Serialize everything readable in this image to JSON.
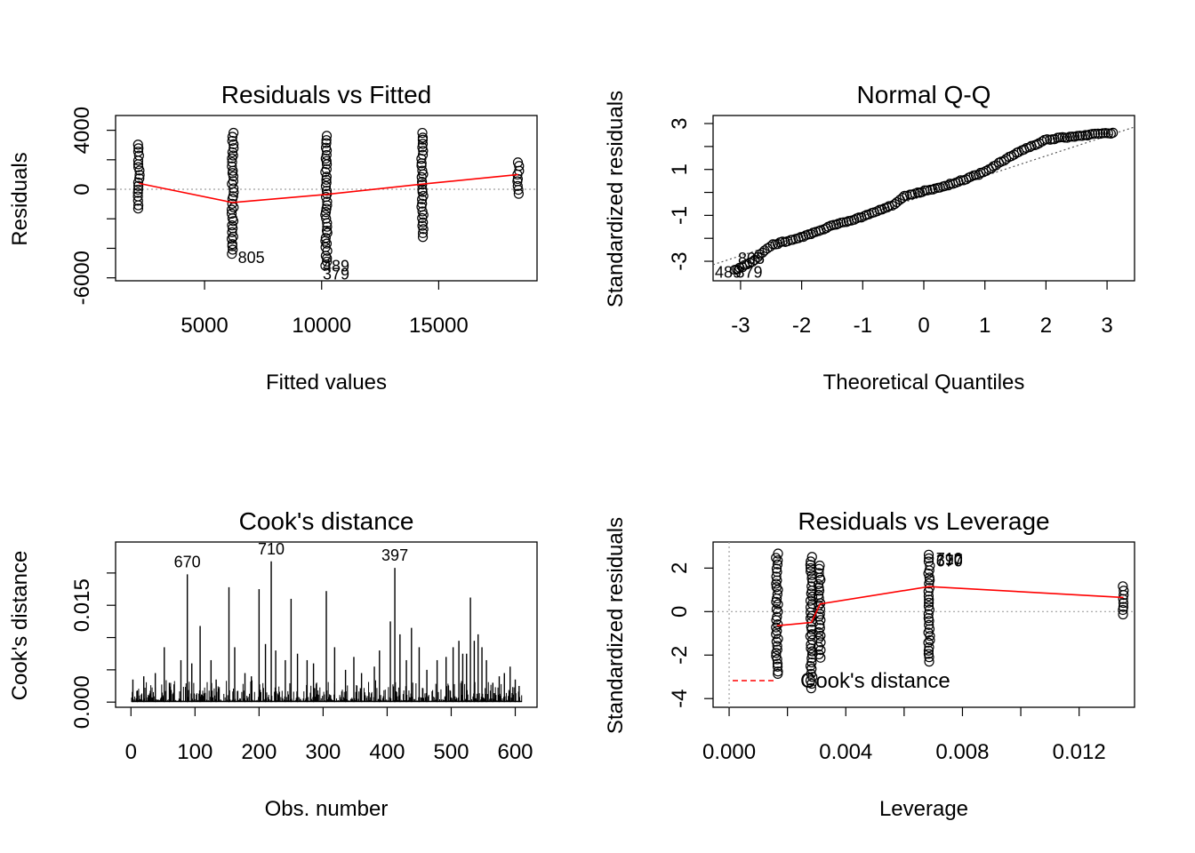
{
  "colors": {
    "fit": "#ff0000",
    "reference": "#a0a0a0",
    "points": "#000000",
    "cook": "#ff0000"
  },
  "chart_data": [
    {
      "id": "residuals-vs-fitted",
      "type": "scatter",
      "title": "Residuals vs Fitted",
      "xlabel": "Fitted values",
      "ylabel": "Residuals",
      "xlim": [
        1200,
        19200
      ],
      "ylim": [
        -6200,
        5000
      ],
      "xticks": [
        5000,
        10000,
        15000
      ],
      "xtick_labels": [
        "5000",
        "10000",
        "15000"
      ],
      "yticks": [
        -6000,
        -4000,
        -2000,
        0,
        2000,
        4000
      ],
      "ytick_labels": [
        "-6000",
        "",
        "",
        "0",
        "",
        "4000"
      ],
      "reference_h": 0,
      "point_groups": [
        {
          "x": 2200,
          "min": -1300,
          "max": 3000
        },
        {
          "x": 6200,
          "min": -4400,
          "max": 3800
        },
        {
          "x": 10200,
          "min": -5200,
          "max": 3600
        },
        {
          "x": 14300,
          "min": -3200,
          "max": 3800
        },
        {
          "x": 18400,
          "min": -300,
          "max": 1800
        }
      ],
      "smooth": {
        "x": [
          2200,
          6200,
          10200,
          14300,
          18400
        ],
        "y": [
          400,
          -900,
          -350,
          350,
          1000
        ]
      },
      "point_labels": [
        {
          "text": "805",
          "x": 6200,
          "y": -4400
        },
        {
          "text": "489",
          "x": 10200,
          "y": -5200
        },
        {
          "text": "379",
          "x": 10200,
          "y": -5400
        }
      ]
    },
    {
      "id": "normal-qq",
      "type": "scatter",
      "title": "Normal Q-Q",
      "xlabel": "Theoretical Quantiles",
      "ylabel": "Standardized residuals",
      "xlim": [
        -3.45,
        3.45
      ],
      "ylim": [
        -3.85,
        3.35
      ],
      "xticks": [
        -3,
        -2,
        -1,
        0,
        1,
        2,
        3
      ],
      "xtick_labels": [
        "-3",
        "-2",
        "-1",
        "0",
        "1",
        "2",
        "3"
      ],
      "yticks": [
        -3,
        -2,
        -1,
        0,
        1,
        2,
        3
      ],
      "ytick_labels": [
        "-3",
        "",
        "-1",
        "",
        "1",
        "",
        "3"
      ],
      "reference_line": {
        "x": [
          -3.45,
          3.45
        ],
        "y": [
          -3.15,
          2.85
        ]
      },
      "curve": {
        "x": [
          -3.1,
          -2.8,
          -2.5,
          -2.0,
          -1.5,
          -1.0,
          -0.5,
          -0.3,
          0,
          0.5,
          1.0,
          1.5,
          2.0,
          2.5,
          3.1
        ],
        "y": [
          -3.4,
          -3.0,
          -2.3,
          -1.95,
          -1.45,
          -1.05,
          -0.55,
          -0.15,
          0.05,
          0.4,
          0.9,
          1.7,
          2.3,
          2.45,
          2.6
        ]
      },
      "point_labels": [
        {
          "text": "805",
          "x": -3.1,
          "y": -2.95
        },
        {
          "text": "489",
          "x": -3.3,
          "y": -3.55
        },
        {
          "text": "379",
          "x": -3.05,
          "y": -3.55
        }
      ]
    },
    {
      "id": "cooks-distance",
      "type": "bar",
      "title": "Cook's distance",
      "xlabel": "Obs. number",
      "ylabel": "Cook's distance",
      "xlim": [
        -24,
        634
      ],
      "ylim": [
        -0.0008,
        0.0248
      ],
      "xticks": [
        0,
        100,
        200,
        300,
        400,
        500,
        600
      ],
      "xtick_labels": [
        "0",
        "100",
        "200",
        "300",
        "400",
        "500",
        "600"
      ],
      "yticks": [
        0.0,
        0.005,
        0.01,
        0.015,
        0.02
      ],
      "ytick_labels": [
        "0.000",
        "",
        "",
        "0.015",
        ""
      ],
      "n_obs": 610,
      "spikes": [
        {
          "x": 3,
          "y": 0.0035
        },
        {
          "x": 10,
          "y": 0.0018
        },
        {
          "x": 20,
          "y": 0.004
        },
        {
          "x": 38,
          "y": 0.0045
        },
        {
          "x": 52,
          "y": 0.0085
        },
        {
          "x": 60,
          "y": 0.003
        },
        {
          "x": 78,
          "y": 0.0065
        },
        {
          "x": 88,
          "y": 0.0198
        },
        {
          "x": 95,
          "y": 0.006
        },
        {
          "x": 108,
          "y": 0.0118
        },
        {
          "x": 125,
          "y": 0.0065
        },
        {
          "x": 133,
          "y": 0.0035
        },
        {
          "x": 153,
          "y": 0.0178
        },
        {
          "x": 162,
          "y": 0.0085
        },
        {
          "x": 178,
          "y": 0.0045
        },
        {
          "x": 188,
          "y": 0.004
        },
        {
          "x": 200,
          "y": 0.0175
        },
        {
          "x": 210,
          "y": 0.009
        },
        {
          "x": 219,
          "y": 0.0218
        },
        {
          "x": 226,
          "y": 0.008
        },
        {
          "x": 241,
          "y": 0.0065
        },
        {
          "x": 250,
          "y": 0.016
        },
        {
          "x": 260,
          "y": 0.0075
        },
        {
          "x": 275,
          "y": 0.0065
        },
        {
          "x": 285,
          "y": 0.006
        },
        {
          "x": 305,
          "y": 0.0172
        },
        {
          "x": 318,
          "y": 0.0085
        },
        {
          "x": 335,
          "y": 0.005
        },
        {
          "x": 348,
          "y": 0.007
        },
        {
          "x": 360,
          "y": 0.0045
        },
        {
          "x": 380,
          "y": 0.0055
        },
        {
          "x": 388,
          "y": 0.008
        },
        {
          "x": 405,
          "y": 0.0125
        },
        {
          "x": 412,
          "y": 0.0208
        },
        {
          "x": 420,
          "y": 0.0105
        },
        {
          "x": 430,
          "y": 0.0065
        },
        {
          "x": 438,
          "y": 0.0115
        },
        {
          "x": 450,
          "y": 0.0085
        },
        {
          "x": 462,
          "y": 0.005
        },
        {
          "x": 478,
          "y": 0.0065
        },
        {
          "x": 492,
          "y": 0.007
        },
        {
          "x": 503,
          "y": 0.0085
        },
        {
          "x": 512,
          "y": 0.0095
        },
        {
          "x": 518,
          "y": 0.0075
        },
        {
          "x": 524,
          "y": 0.0075
        },
        {
          "x": 530,
          "y": 0.0162
        },
        {
          "x": 536,
          "y": 0.0095
        },
        {
          "x": 542,
          "y": 0.0105
        },
        {
          "x": 548,
          "y": 0.0085
        },
        {
          "x": 555,
          "y": 0.0065
        },
        {
          "x": 565,
          "y": 0.003
        },
        {
          "x": 575,
          "y": 0.004
        },
        {
          "x": 583,
          "y": 0.0045
        },
        {
          "x": 592,
          "y": 0.0055
        },
        {
          "x": 600,
          "y": 0.0035
        },
        {
          "x": 606,
          "y": 0.0025
        }
      ],
      "point_labels": [
        {
          "text": "670",
          "x": 88,
          "y": 0.0198
        },
        {
          "text": "710",
          "x": 219,
          "y": 0.0218
        },
        {
          "text": "397",
          "x": 412,
          "y": 0.0208
        }
      ]
    },
    {
      "id": "residuals-vs-leverage",
      "type": "scatter",
      "title": "Residuals vs Leverage",
      "xlabel": "Leverage",
      "ylabel": "Standardized residuals",
      "xlim": [
        -0.00055,
        0.0139
      ],
      "ylim": [
        -4.4,
        3.2
      ],
      "xticks": [
        0.0,
        0.002,
        0.004,
        0.006,
        0.008,
        0.01,
        0.012
      ],
      "xtick_labels": [
        "0.000",
        "",
        "0.004",
        "",
        "0.008",
        "",
        "0.012"
      ],
      "yticks": [
        -4,
        -2,
        0,
        2
      ],
      "ytick_labels": [
        "-4",
        "-2",
        "0",
        "2"
      ],
      "reference_h": 0,
      "reference_v": 0,
      "point_groups": [
        {
          "x": 0.00164,
          "min": -2.9,
          "max": 2.65
        },
        {
          "x": 0.00282,
          "min": -3.5,
          "max": 2.5
        },
        {
          "x": 0.0031,
          "min": -2.1,
          "max": 2.1
        },
        {
          "x": 0.00685,
          "min": -2.3,
          "max": 2.6
        },
        {
          "x": 0.01352,
          "min": -0.15,
          "max": 1.15
        }
      ],
      "smooth": {
        "x": [
          0.00164,
          0.00282,
          0.00312,
          0.00685,
          0.01352
        ],
        "y": [
          -0.65,
          -0.5,
          0.35,
          1.15,
          0.65
        ]
      },
      "point_labels": [
        {
          "text": "710",
          "x": 0.00685,
          "y": 2.5
        },
        {
          "text": "397",
          "x": 0.00685,
          "y": 2.45
        },
        {
          "text": "670",
          "x": 0.00685,
          "y": 2.4
        }
      ],
      "legend": {
        "text": "Cook's distance",
        "position": "bottom-left"
      }
    }
  ]
}
